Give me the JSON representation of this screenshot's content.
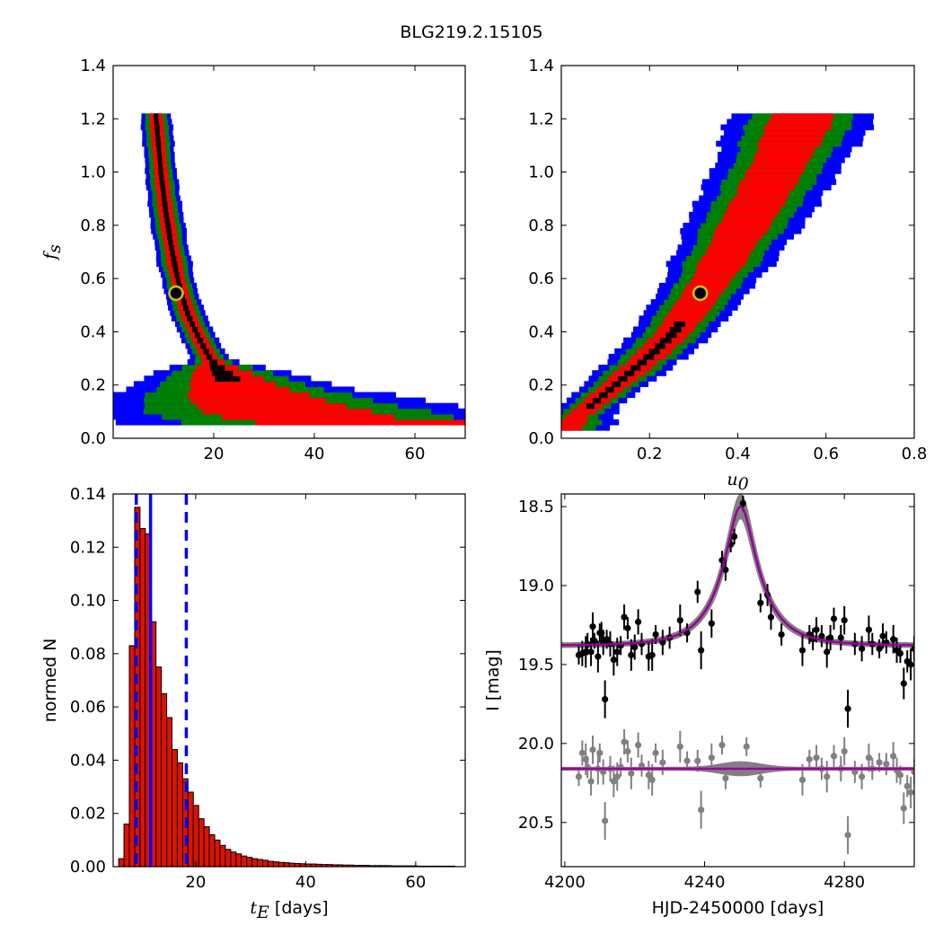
{
  "figure": {
    "title": "BLG219.2.15105"
  },
  "colors": {
    "sigma1": "#000000",
    "sigma2": "#ff0000",
    "sigma3": "#008000",
    "sigma4": "#0000ff",
    "hist_fill": "#dd1100",
    "dashed_line": "#0000ff",
    "model_line": "#990099",
    "model_band": "#808080",
    "data_main": "#000000",
    "data_resid": "#808080",
    "best_fit_marker": "#c8c800"
  },
  "chart_data": [
    {
      "type": "heatmap",
      "panel": "top-left",
      "xlabel": "",
      "ylabel": "f_s",
      "xlim": [
        0,
        70
      ],
      "ylim": [
        0,
        1.4
      ],
      "xticks": [
        "20",
        "40",
        "60"
      ],
      "yticks": [
        "0.0",
        "0.2",
        "0.4",
        "0.6",
        "0.8",
        "1.0",
        "1.2",
        "1.4"
      ],
      "levels": [
        "1-sigma",
        "2-sigma",
        "3-sigma",
        "4-sigma"
      ],
      "ridge": [
        [
          8.5,
          1.22
        ],
        [
          9.5,
          1.0
        ],
        [
          10.5,
          0.85
        ],
        [
          11.5,
          0.73
        ],
        [
          12.5,
          0.63
        ],
        [
          13.5,
          0.55
        ],
        [
          15,
          0.46
        ],
        [
          17,
          0.38
        ],
        [
          19,
          0.31
        ],
        [
          21,
          0.26
        ],
        [
          24,
          0.2
        ],
        [
          28,
          0.15
        ],
        [
          33,
          0.11
        ],
        [
          40,
          0.075
        ],
        [
          50,
          0.06
        ],
        [
          60,
          0.055
        ],
        [
          65,
          0.05
        ]
      ],
      "best_fit": {
        "x": 12.5,
        "y": 0.545
      }
    },
    {
      "type": "heatmap",
      "panel": "top-right",
      "xlabel": "u_0",
      "ylabel": "",
      "xlim": [
        0,
        0.8
      ],
      "ylim": [
        0,
        1.4
      ],
      "xticks": [
        "0.2",
        "0.4",
        "0.6",
        "0.8"
      ],
      "yticks": [
        "0.0",
        "0.2",
        "0.4",
        "0.6",
        "0.8",
        "1.0",
        "1.2",
        "1.4"
      ],
      "levels": [
        "1-sigma",
        "2-sigma",
        "3-sigma",
        "4-sigma"
      ],
      "ridge": [
        [
          0.0,
          0.04
        ],
        [
          0.05,
          0.1
        ],
        [
          0.1,
          0.17
        ],
        [
          0.15,
          0.24
        ],
        [
          0.2,
          0.31
        ],
        [
          0.25,
          0.39
        ],
        [
          0.3,
          0.5
        ],
        [
          0.35,
          0.62
        ],
        [
          0.4,
          0.76
        ],
        [
          0.45,
          0.9
        ],
        [
          0.5,
          1.05
        ],
        [
          0.55,
          1.22
        ]
      ],
      "best_fit": {
        "x": 0.315,
        "y": 0.545
      }
    },
    {
      "type": "bar",
      "panel": "bottom-left",
      "xlabel": "t_E  [days]",
      "ylabel": "normed N",
      "xlim": [
        5,
        69
      ],
      "ylim": [
        0,
        0.14
      ],
      "xticks": [
        "20",
        "40",
        "60"
      ],
      "yticks": [
        "0.00",
        "0.02",
        "0.04",
        "0.06",
        "0.08",
        "0.10",
        "0.12",
        "0.14"
      ],
      "bin_width": 0.97,
      "bin_start": 6.0,
      "values": [
        0.003,
        0.016,
        0.083,
        0.135,
        0.127,
        0.125,
        0.092,
        0.075,
        0.065,
        0.056,
        0.044,
        0.039,
        0.033,
        0.028,
        0.023,
        0.018,
        0.015,
        0.012,
        0.01,
        0.008,
        0.0065,
        0.0055,
        0.0048,
        0.004,
        0.0035,
        0.003,
        0.0027,
        0.0024,
        0.002,
        0.0018,
        0.0016,
        0.0015,
        0.0013,
        0.0012,
        0.0011,
        0.001,
        0.001,
        0.0009,
        0.0008,
        0.0008,
        0.0007,
        0.0007,
        0.0006,
        0.0006,
        0.0005,
        0.0005,
        0.0005,
        0.0004,
        0.0004,
        0.0004,
        0.0004,
        0.0003,
        0.0003,
        0.0003,
        0.0003,
        0.0003,
        0.0002,
        0.0002,
        0.0002,
        0.0002,
        0.0002,
        0.0002,
        0.0002
      ],
      "vlines": [
        {
          "x": 9.2,
          "style": "dashed"
        },
        {
          "x": 11.8,
          "style": "solid"
        },
        {
          "x": 18.3,
          "style": "dashed"
        }
      ]
    },
    {
      "type": "line",
      "panel": "bottom-right",
      "xlabel": "HJD-2450000 [days]",
      "ylabel": "I [mag]",
      "xlim": [
        4199,
        4300
      ],
      "ylim": [
        20.78,
        18.42
      ],
      "xticks": [
        "4200",
        "4240",
        "4280"
      ],
      "yticks": [
        "18.5",
        "19.0",
        "19.5",
        "20.0",
        "20.5"
      ],
      "model": {
        "baseline": 19.38,
        "peak": 18.58,
        "t0": 4250.3,
        "tE": 11.8,
        "u0": 0.315,
        "fs": 0.545
      },
      "residual_baseline": 20.16,
      "points": [
        [
          4204,
          19.44,
          0.06
        ],
        [
          4205,
          19.43,
          0.08
        ],
        [
          4206,
          19.42,
          0.1
        ],
        [
          4206.5,
          19.37,
          0.07
        ],
        [
          4207.5,
          19.42,
          0.09
        ],
        [
          4208,
          19.26,
          0.09
        ],
        [
          4208.5,
          19.35,
          0.05
        ],
        [
          4209.5,
          19.45,
          0.1
        ],
        [
          4210,
          19.3,
          0.06
        ],
        [
          4210.5,
          19.3,
          0.07
        ],
        [
          4211,
          19.36,
          0.08
        ],
        [
          4211.5,
          19.72,
          0.12
        ],
        [
          4212,
          19.34,
          0.06
        ],
        [
          4213,
          19.37,
          0.08
        ],
        [
          4214,
          19.47,
          0.1
        ],
        [
          4215,
          19.42,
          0.09
        ],
        [
          4216,
          19.38,
          0.06
        ],
        [
          4217,
          19.2,
          0.08
        ],
        [
          4218,
          19.27,
          0.07
        ],
        [
          4219,
          19.44,
          0.1
        ],
        [
          4220,
          19.39,
          0.08
        ],
        [
          4221,
          19.23,
          0.08
        ],
        [
          4222,
          19.37,
          0.07
        ],
        [
          4224,
          19.45,
          0.09
        ],
        [
          4225,
          19.44,
          0.1
        ],
        [
          4226,
          19.31,
          0.06
        ],
        [
          4228,
          19.36,
          0.08
        ],
        [
          4230,
          19.33,
          0.07
        ],
        [
          4233,
          19.22,
          0.1
        ],
        [
          4235,
          19.3,
          0.06
        ],
        [
          4238,
          19.04,
          0.07
        ],
        [
          4239,
          19.41,
          0.12
        ],
        [
          4242,
          19.24,
          0.09
        ],
        [
          4245,
          18.84,
          0.06
        ],
        [
          4246,
          18.9,
          0.07
        ],
        [
          4247.5,
          18.74,
          0.05
        ],
        [
          4248.5,
          18.69,
          0.05
        ],
        [
          4251,
          18.48,
          0.05
        ],
        [
          4256,
          19.11,
          0.06
        ],
        [
          4258,
          19.06,
          0.07
        ],
        [
          4259,
          19.2,
          0.08
        ],
        [
          4262,
          19.31,
          0.07
        ],
        [
          4268,
          19.41,
          0.1
        ],
        [
          4270,
          19.31,
          0.06
        ],
        [
          4271,
          19.34,
          0.07
        ],
        [
          4272,
          19.28,
          0.08
        ],
        [
          4273.5,
          19.32,
          0.07
        ],
        [
          4275,
          19.42,
          0.1
        ],
        [
          4276,
          19.33,
          0.08
        ],
        [
          4277,
          19.21,
          0.07
        ],
        [
          4279,
          19.33,
          0.08
        ],
        [
          4280,
          19.22,
          0.09
        ],
        [
          4281,
          19.78,
          0.12
        ],
        [
          4283,
          19.37,
          0.07
        ],
        [
          4285,
          19.4,
          0.08
        ],
        [
          4287,
          19.28,
          0.09
        ],
        [
          4288,
          19.37,
          0.07
        ],
        [
          4290,
          19.4,
          0.06
        ],
        [
          4291,
          19.32,
          0.08
        ],
        [
          4292,
          19.36,
          0.07
        ],
        [
          4294,
          19.34,
          0.09
        ],
        [
          4295,
          19.41,
          0.08
        ],
        [
          4296,
          19.43,
          0.06
        ],
        [
          4297,
          19.62,
          0.1
        ],
        [
          4298,
          19.48,
          0.07
        ],
        [
          4299,
          19.5,
          0.1
        ],
        [
          4300,
          19.4,
          0.08
        ]
      ],
      "residuals": [
        [
          4204,
          20.21,
          0.06
        ],
        [
          4205,
          20.06,
          0.08
        ],
        [
          4206,
          20.1,
          0.1
        ],
        [
          4206.5,
          20.15,
          0.07
        ],
        [
          4207.5,
          20.24,
          0.09
        ],
        [
          4208,
          20.04,
          0.09
        ],
        [
          4209.5,
          20.16,
          0.1
        ],
        [
          4210,
          20.06,
          0.06
        ],
        [
          4211,
          20.18,
          0.08
        ],
        [
          4211.5,
          20.49,
          0.12
        ],
        [
          4213,
          20.16,
          0.08
        ],
        [
          4214,
          20.24,
          0.1
        ],
        [
          4215,
          20.21,
          0.09
        ],
        [
          4216,
          20.15,
          0.06
        ],
        [
          4217,
          19.99,
          0.08
        ],
        [
          4218,
          20.05,
          0.07
        ],
        [
          4219,
          20.19,
          0.1
        ],
        [
          4221,
          20.01,
          0.08
        ],
        [
          4222,
          20.14,
          0.07
        ],
        [
          4224,
          20.2,
          0.09
        ],
        [
          4225,
          20.23,
          0.1
        ],
        [
          4226,
          20.06,
          0.06
        ],
        [
          4228,
          20.12,
          0.08
        ],
        [
          4233,
          20.02,
          0.1
        ],
        [
          4235,
          20.11,
          0.06
        ],
        [
          4238,
          20.11,
          0.07
        ],
        [
          4239,
          20.42,
          0.12
        ],
        [
          4242,
          20.09,
          0.09
        ],
        [
          4245,
          20.01,
          0.06
        ],
        [
          4246,
          20.22,
          0.07
        ],
        [
          4252,
          20.02,
          0.06
        ],
        [
          4256,
          20.22,
          0.06
        ],
        [
          4268,
          20.23,
          0.1
        ],
        [
          4270,
          20.1,
          0.06
        ],
        [
          4272,
          20.09,
          0.08
        ],
        [
          4273.5,
          20.16,
          0.07
        ],
        [
          4275,
          20.21,
          0.1
        ],
        [
          4277,
          20.08,
          0.07
        ],
        [
          4279,
          20.16,
          0.08
        ],
        [
          4280,
          20.05,
          0.09
        ],
        [
          4281,
          20.58,
          0.12
        ],
        [
          4283,
          20.18,
          0.07
        ],
        [
          4285,
          20.21,
          0.08
        ],
        [
          4287,
          20.09,
          0.09
        ],
        [
          4288,
          20.16,
          0.07
        ],
        [
          4290,
          20.12,
          0.06
        ],
        [
          4292,
          20.13,
          0.07
        ],
        [
          4294,
          20.08,
          0.09
        ],
        [
          4295,
          20.17,
          0.08
        ],
        [
          4296,
          20.2,
          0.06
        ],
        [
          4297,
          20.41,
          0.1
        ],
        [
          4298,
          20.27,
          0.07
        ],
        [
          4299,
          20.31,
          0.1
        ],
        [
          4300,
          20.18,
          0.08
        ]
      ]
    }
  ]
}
